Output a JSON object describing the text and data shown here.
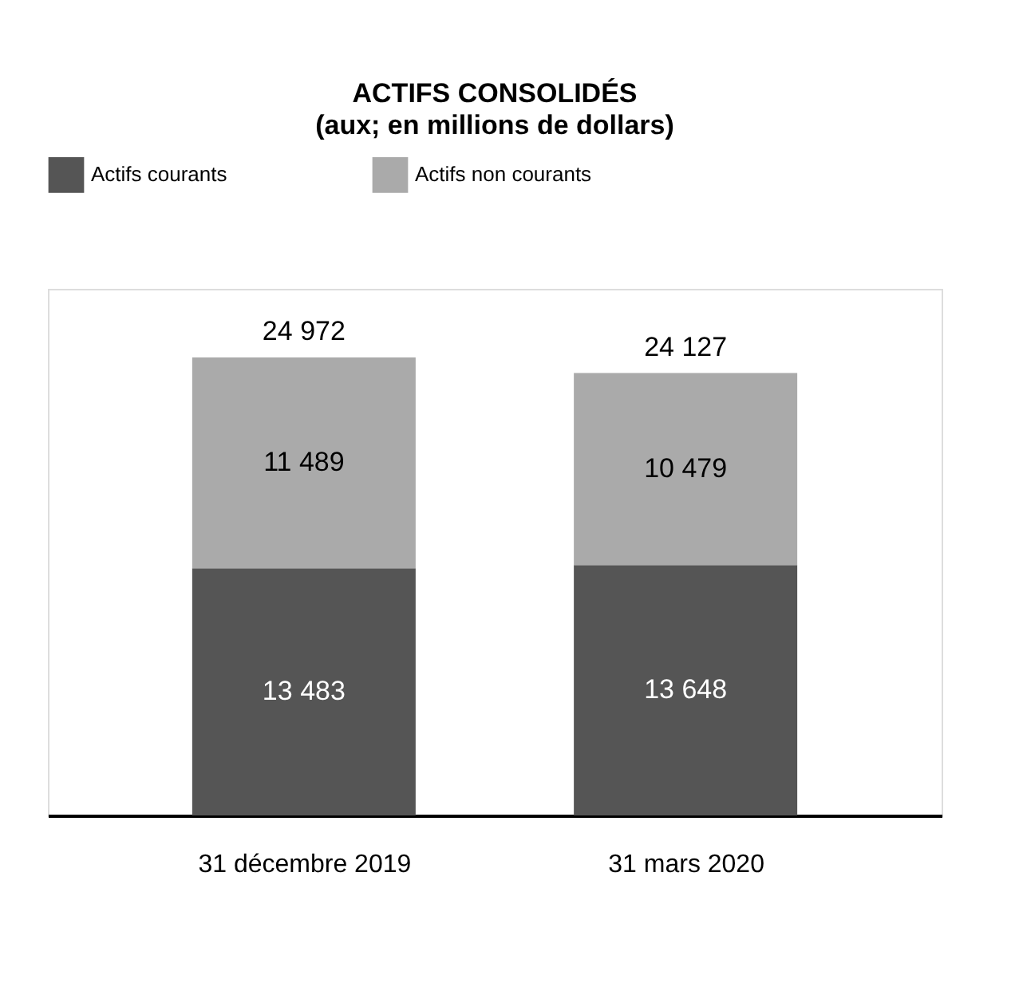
{
  "chart_data": {
    "type": "bar",
    "title": "ACTIFS CONSOLIDÉS",
    "subtitle": "(aux; en millions de dollars)",
    "categories": [
      "31 décembre 2019",
      "31 mars 2020"
    ],
    "stacked": true,
    "legend": "top",
    "grid": false,
    "tick_labels": "x",
    "series": [
      {
        "name": "Actifs courants",
        "color": "#555555",
        "values": [
          13483,
          13648
        ],
        "value_labels": [
          "13 483",
          "13 648"
        ]
      },
      {
        "name": "Actifs non courants",
        "color": "#aaaaaa",
        "values": [
          11489,
          10479
        ],
        "value_labels": [
          "11 489",
          "10 479"
        ]
      }
    ],
    "totals": [
      "24 972",
      "24 127"
    ]
  }
}
